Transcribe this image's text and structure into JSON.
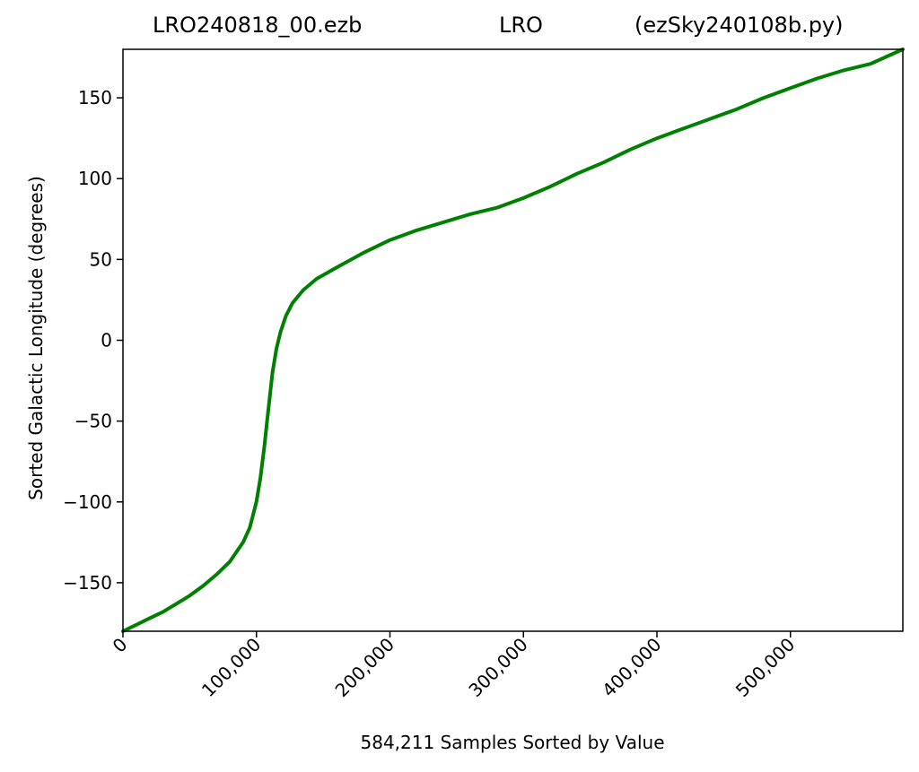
{
  "chart_data": {
    "type": "line",
    "title_parts": [
      "LRO240818_00.ezb",
      "LRO",
      "(ezSky240108b.py)"
    ],
    "xlabel": "584,211 Samples Sorted by Value",
    "ylabel": "Sorted Galactic Longitude (degrees)",
    "xlim": [
      0,
      584211
    ],
    "ylim": [
      -180,
      180
    ],
    "x_ticks": [
      0,
      100000,
      200000,
      300000,
      400000,
      500000
    ],
    "x_tick_labels": [
      "0",
      "100,000",
      "200,000",
      "300,000",
      "400,000",
      "500,000"
    ],
    "y_ticks": [
      -150,
      -100,
      -50,
      0,
      50,
      100,
      150
    ],
    "y_tick_labels": [
      "−150",
      "−100",
      "−50",
      "0",
      "50",
      "100",
      "150"
    ],
    "grid": false,
    "series": [
      {
        "color": "#008000",
        "x": [
          0,
          10000,
          20000,
          30000,
          40000,
          50000,
          60000,
          70000,
          80000,
          90000,
          95000,
          100000,
          103000,
          106000,
          108000,
          110000,
          112000,
          115000,
          118000,
          122000,
          127000,
          135000,
          145000,
          160000,
          180000,
          200000,
          220000,
          240000,
          260000,
          280000,
          300000,
          320000,
          340000,
          360000,
          380000,
          400000,
          420000,
          440000,
          460000,
          480000,
          500000,
          520000,
          540000,
          560000,
          584211
        ],
        "y": [
          -180,
          -176,
          -172,
          -168,
          -163,
          -158,
          -152,
          -145,
          -137,
          -125,
          -116,
          -100,
          -85,
          -65,
          -50,
          -35,
          -20,
          -5,
          5,
          15,
          23,
          31,
          38,
          45,
          54,
          62,
          68,
          73,
          78,
          82,
          88,
          95,
          103,
          110,
          118,
          125,
          131,
          137,
          143,
          150,
          156,
          162,
          167,
          171,
          180
        ]
      }
    ]
  }
}
